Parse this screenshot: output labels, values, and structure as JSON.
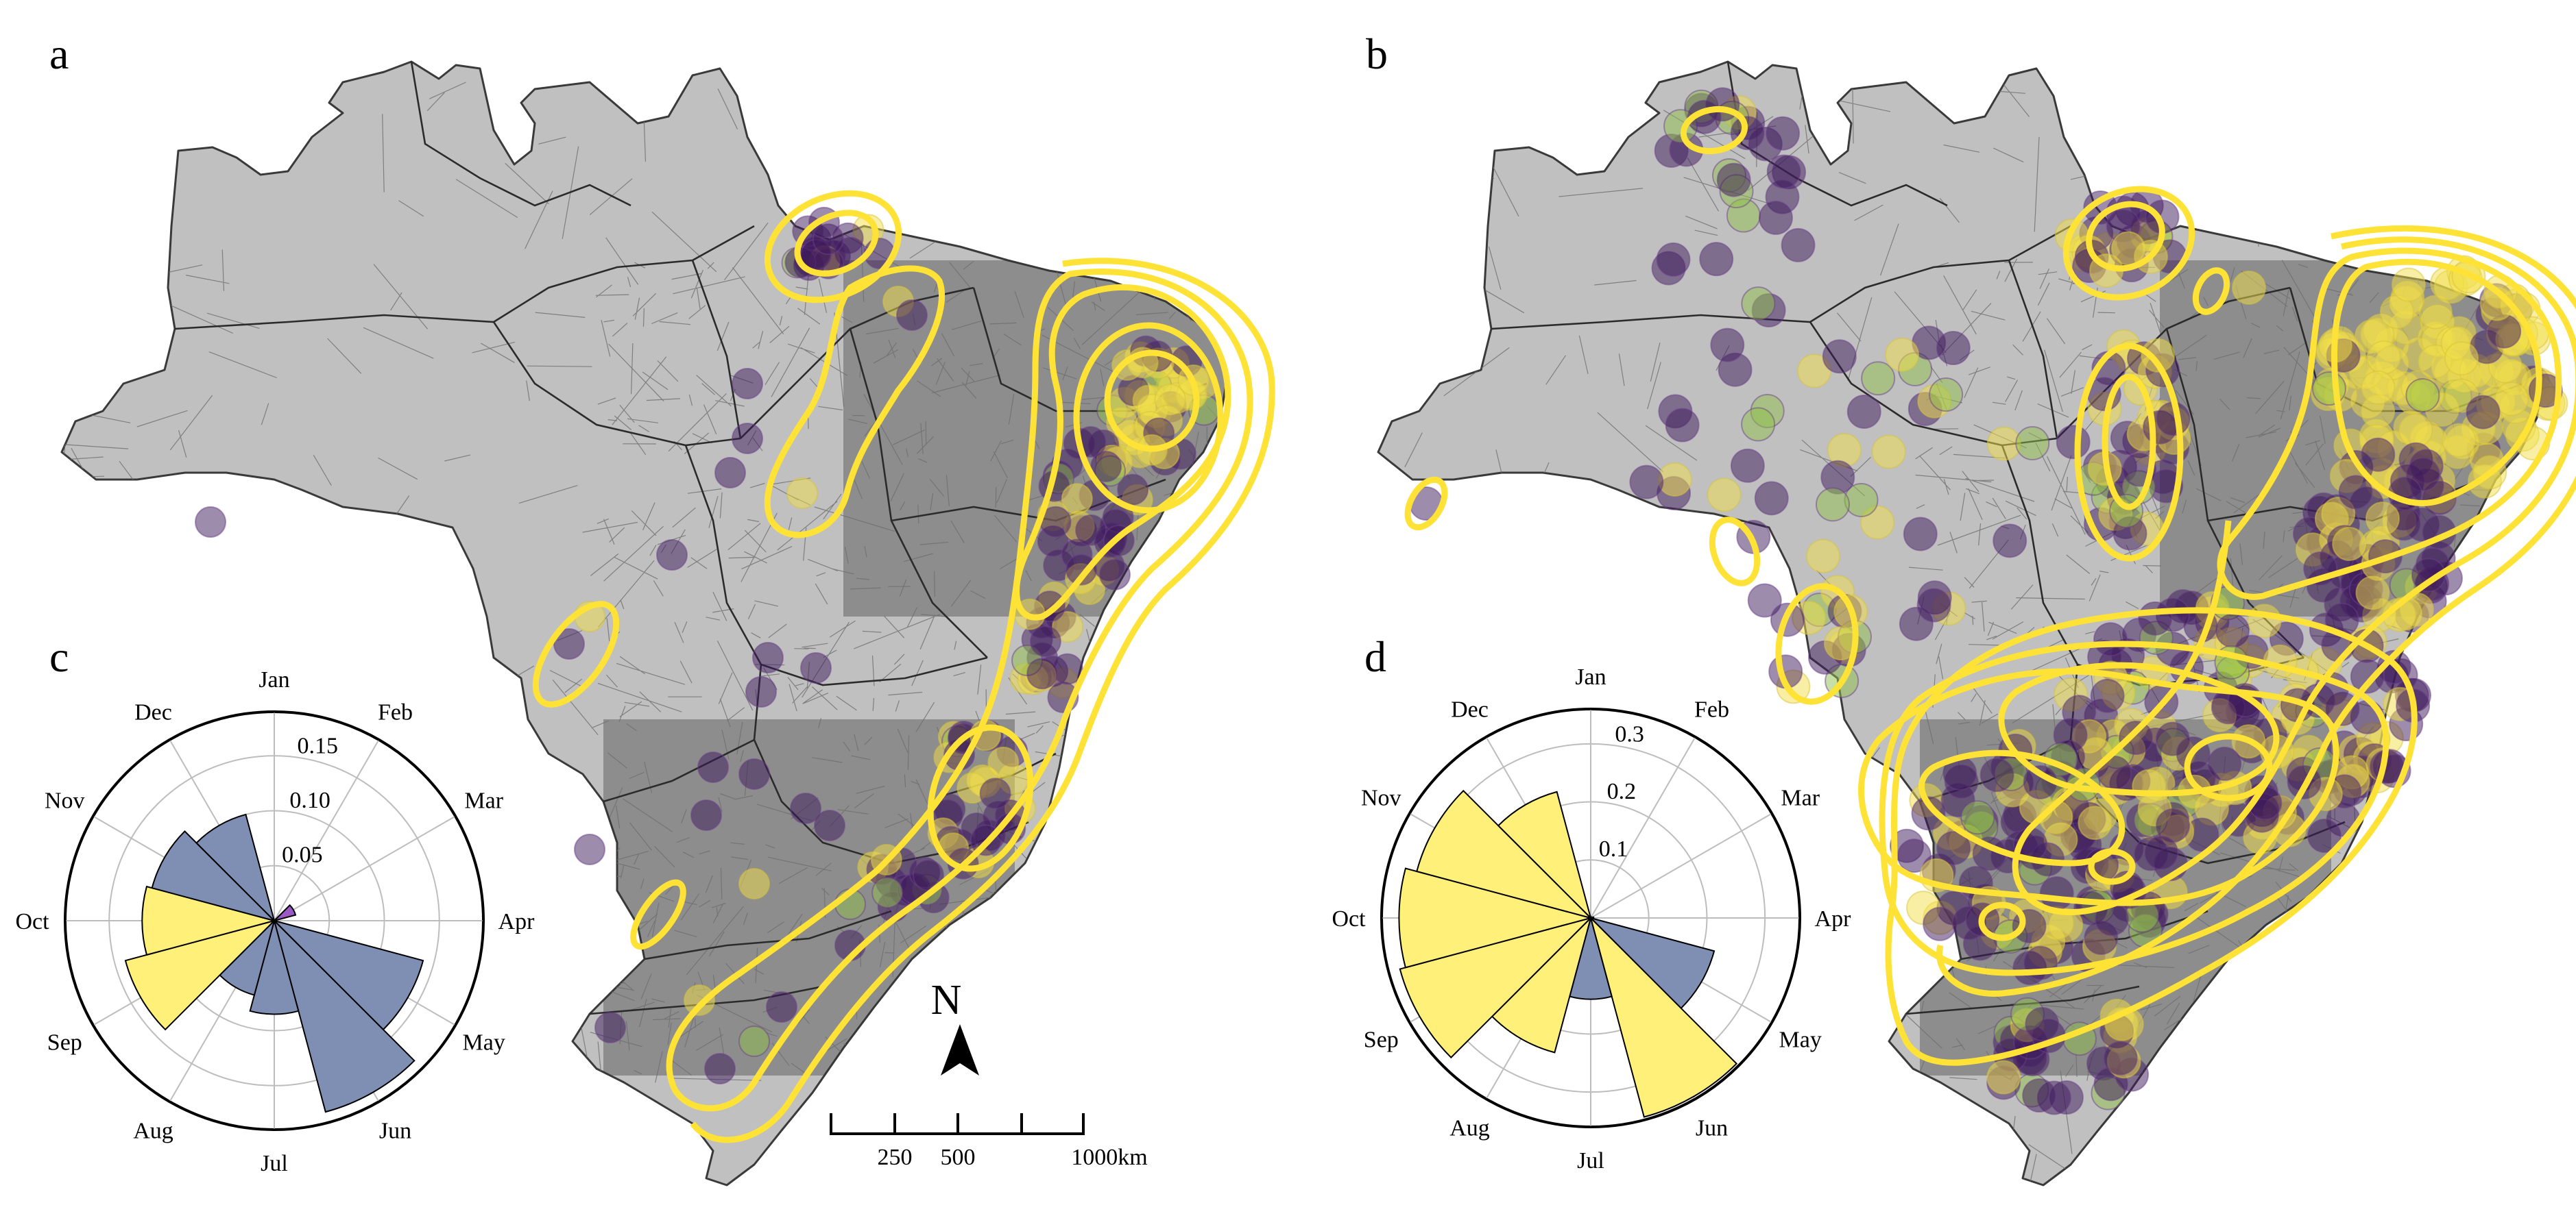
{
  "figure": {
    "panel_labels": [
      "a",
      "b",
      "c",
      "d"
    ],
    "colors": {
      "land": "#c0c0c0",
      "boundary": "#2b2b2b",
      "contour": "#ffe236",
      "point_low": "#3d1a5c",
      "point_mid": "#8fbf4a",
      "point_high": "#f2e04a",
      "rose_low": "#7f8fb3",
      "rose_high": "#fff07a"
    }
  },
  "map_a": {
    "letter": "a",
    "scale_bar": {
      "ticks": [
        "250",
        "500",
        "1000km"
      ]
    },
    "north_arrow": {
      "label": "N"
    }
  },
  "map_b": {
    "letter": "b"
  },
  "chart_data": [
    {
      "type": "bar",
      "subtype": "polar-rose",
      "panel": "c",
      "categories": [
        "Jan",
        "Feb",
        "Mar",
        "Apr",
        "May",
        "Jun",
        "Jul",
        "Aug",
        "Sep",
        "Oct",
        "Nov",
        "Dec"
      ],
      "values": [
        0.0,
        0.0,
        0.02,
        0.0,
        0.14,
        0.18,
        0.085,
        0.07,
        0.14,
        0.12,
        0.115,
        0.1
      ],
      "ring_ticks": [
        0.05,
        0.1,
        0.15
      ],
      "ring_tick_labels": [
        "0.05",
        "0.10",
        "0.15"
      ],
      "rmax": 0.19,
      "bar_colors": [
        "#7f8fb3",
        "#7f8fb3",
        "#9b59c6",
        "#7f8fb3",
        "#7f8fb3",
        "#7f8fb3",
        "#7f8fb3",
        "#7f8fb3",
        "#fff07a",
        "#fff07a",
        "#7f8fb3",
        "#7f8fb3"
      ]
    },
    {
      "type": "bar",
      "subtype": "polar-rose",
      "panel": "d",
      "categories": [
        "Jan",
        "Feb",
        "Mar",
        "Apr",
        "May",
        "Jun",
        "Jul",
        "Aug",
        "Sep",
        "Oct",
        "Nov",
        "Dec"
      ],
      "values": [
        0.0,
        0.0,
        0.0,
        0.005,
        0.22,
        0.355,
        0.14,
        0.24,
        0.34,
        0.33,
        0.31,
        0.225
      ],
      "ring_ticks": [
        0.1,
        0.2,
        0.3
      ],
      "ring_tick_labels": [
        "0.1",
        "0.2",
        "0.3"
      ],
      "rmax": 0.36,
      "bar_colors": [
        "#7f8fb3",
        "#7f8fb3",
        "#7f8fb3",
        "#7f8fb3",
        "#7f8fb3",
        "#fff07a",
        "#7f8fb3",
        "#fff07a",
        "#fff07a",
        "#fff07a",
        "#fff07a",
        "#fff07a"
      ]
    }
  ]
}
